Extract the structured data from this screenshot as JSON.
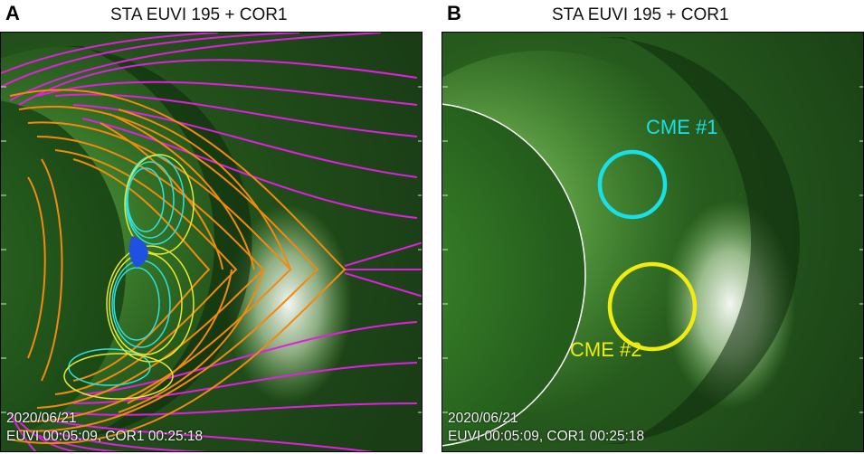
{
  "panels": [
    {
      "letter": "A",
      "title": "STA EUVI 195 + COR1",
      "date": "2020/06/21",
      "times": "EUVI 00:05:09, COR1 00:25:18"
    },
    {
      "letter": "B",
      "title": "STA EUVI 195 + COR1",
      "date": "2020/06/21",
      "times": "EUVI 00:05:09, COR1 00:25:18",
      "annotations": [
        {
          "label": "CME #1",
          "color": "#19e0e6"
        },
        {
          "label": "CME #2",
          "color": "#f0ec12"
        }
      ]
    }
  ],
  "colors": {
    "open_field": "#e020e0",
    "closed_field": "#f08a10",
    "loops_cyan": "#2fe0e0",
    "loops_yellow": "#e8e830",
    "loops_blue": "#2050e0"
  }
}
